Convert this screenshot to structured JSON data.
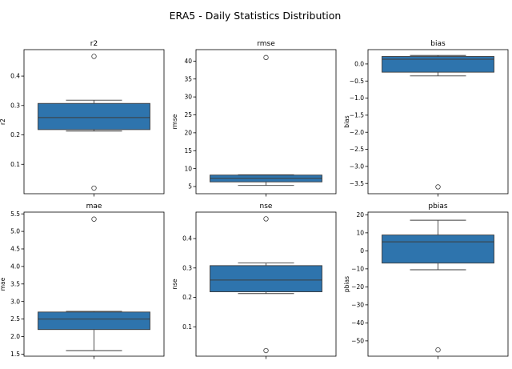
{
  "figure": {
    "title": "ERA5 - Daily Statistics Distribution"
  },
  "chart_data": [
    {
      "type": "box",
      "title": "r2",
      "ylabel": "r2",
      "ylim": [
        0.0,
        0.49
      ],
      "yticks": [
        0.1,
        0.2,
        0.3,
        0.4
      ],
      "tick_labels": [
        "0.1",
        "0.2",
        "0.3",
        "0.4"
      ],
      "box": {
        "whisker_low": 0.213,
        "q1": 0.218,
        "median": 0.259,
        "q3": 0.307,
        "whisker_high": 0.318
      },
      "outliers": [
        0.467,
        0.019
      ],
      "color": "#2e74ad"
    },
    {
      "type": "box",
      "title": "rmse",
      "ylabel": "rmse",
      "ylim": [
        3.0,
        43.2
      ],
      "yticks": [
        5,
        10,
        15,
        20,
        25,
        30,
        35,
        40
      ],
      "tick_labels": [
        "5",
        "10",
        "15",
        "20",
        "25",
        "30",
        "35",
        "40"
      ],
      "box": {
        "whisker_low": 5.3,
        "q1": 6.3,
        "median": 7.3,
        "q3": 8.2,
        "whisker_high": 8.3
      },
      "outliers": [
        41.0
      ],
      "color": "#2e74ad"
    },
    {
      "type": "box",
      "title": "bias",
      "ylabel": "bias",
      "ylim": [
        -3.8,
        0.42
      ],
      "yticks": [
        0.0,
        -0.5,
        -1.0,
        -1.5,
        -2.0,
        -2.5,
        -3.0,
        -3.5
      ],
      "tick_labels": [
        "0.0",
        "−0.5",
        "−1.0",
        "−1.5",
        "−2.0",
        "−2.5",
        "−3.0",
        "−3.5"
      ],
      "box": {
        "whisker_low": -0.35,
        "q1": -0.24,
        "median": 0.14,
        "q3": 0.22,
        "whisker_high": 0.25
      },
      "outliers": [
        -3.6
      ],
      "color": "#2e74ad"
    },
    {
      "type": "box",
      "title": "mae",
      "ylabel": "mae",
      "ylim": [
        1.44,
        5.55
      ],
      "yticks": [
        1.5,
        2.0,
        2.5,
        3.0,
        3.5,
        4.0,
        4.5,
        5.0,
        5.5
      ],
      "tick_labels": [
        "1.5",
        "2.0",
        "2.5",
        "3.0",
        "3.5",
        "4.0",
        "4.5",
        "5.0",
        "5.5"
      ],
      "box": {
        "whisker_low": 1.6,
        "q1": 2.2,
        "median": 2.5,
        "q3": 2.7,
        "whisker_high": 2.72
      },
      "outliers": [
        5.35
      ],
      "color": "#2e74ad"
    },
    {
      "type": "box",
      "title": "nse",
      "ylabel": "nse",
      "ylim": [
        0.0,
        0.49
      ],
      "yticks": [
        0.1,
        0.2,
        0.3,
        0.4
      ],
      "tick_labels": [
        "0.1",
        "0.2",
        "0.3",
        "0.4"
      ],
      "box": {
        "whisker_low": 0.213,
        "q1": 0.219,
        "median": 0.259,
        "q3": 0.308,
        "whisker_high": 0.317
      },
      "outliers": [
        0.467,
        0.019
      ],
      "color": "#2e74ad"
    },
    {
      "type": "box",
      "title": "pbias",
      "ylabel": "pbias",
      "ylim": [
        -58.5,
        21.5
      ],
      "yticks": [
        20,
        10,
        0,
        -10,
        -20,
        -30,
        -40,
        -50
      ],
      "tick_labels": [
        "20",
        "10",
        "0",
        "−10",
        "−20",
        "−30",
        "−40",
        "−50"
      ],
      "box": {
        "whisker_low": -10.5,
        "q1": -6.8,
        "median": 5.0,
        "q3": 8.8,
        "whisker_high": 17.0
      },
      "outliers": [
        -55.0
      ],
      "color": "#2e74ad"
    }
  ]
}
